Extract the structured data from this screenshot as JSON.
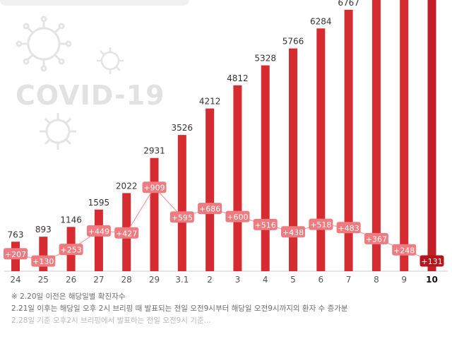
{
  "watermark": {
    "text": "COVID-19"
  },
  "colors": {
    "bar": "#d62b30",
    "bar_highlight": "#c22026",
    "increase_box": "#ee7b7f",
    "increase_box_highlight": "#b3161c",
    "increase_line": "#ef9a9e",
    "axis_label": "#555555",
    "value_label": "#333333"
  },
  "chart_data": {
    "type": "bar",
    "categories": [
      "24",
      "25",
      "26",
      "27",
      "28",
      "29",
      "3.1",
      "2",
      "3",
      "4",
      "5",
      "6",
      "7",
      "8",
      "9",
      "10"
    ],
    "series": [
      {
        "values": [
          763,
          893,
          1146,
          1595,
          2022,
          2931,
          3526,
          4212,
          4812,
          5328,
          5766,
          6284,
          6767,
          null,
          null,
          null
        ]
      },
      {
        "values": [
          207,
          130,
          253,
          449,
          427,
          909,
          595,
          686,
          600,
          516,
          438,
          518,
          483,
          367,
          248,
          131
        ]
      }
    ],
    "value_labels": [
      "763",
      "893",
      "1146",
      "1595",
      "2022",
      "2931",
      "3526",
      "4212",
      "4812",
      "5328",
      "5766",
      "6284",
      "6767",
      "",
      "",
      ""
    ],
    "increase_labels": [
      "+207",
      "+130",
      "+253",
      "+449",
      "+427",
      "+909",
      "+595",
      "+686",
      "+600",
      "+516",
      "+438",
      "+518",
      "+483",
      "+367",
      "+248",
      "+131"
    ],
    "highlight_index": 15,
    "title": "",
    "xlabel": "",
    "ylabel": "",
    "ylim": [
      0,
      6800
    ],
    "grid": false
  },
  "footnotes": {
    "line1": "※ 2.20일 이전은 해당일별 확진자수",
    "line2": "2.21일 이후는 해당일 오후 2시 브리핑 때 발표되는 전일 오전9시부터 해당일 오전9시까지의 환자 수 증가분",
    "line3": "2.28일 기준 오후2시 브리핑에서 발표하는 전일 오전9시 기준..."
  }
}
